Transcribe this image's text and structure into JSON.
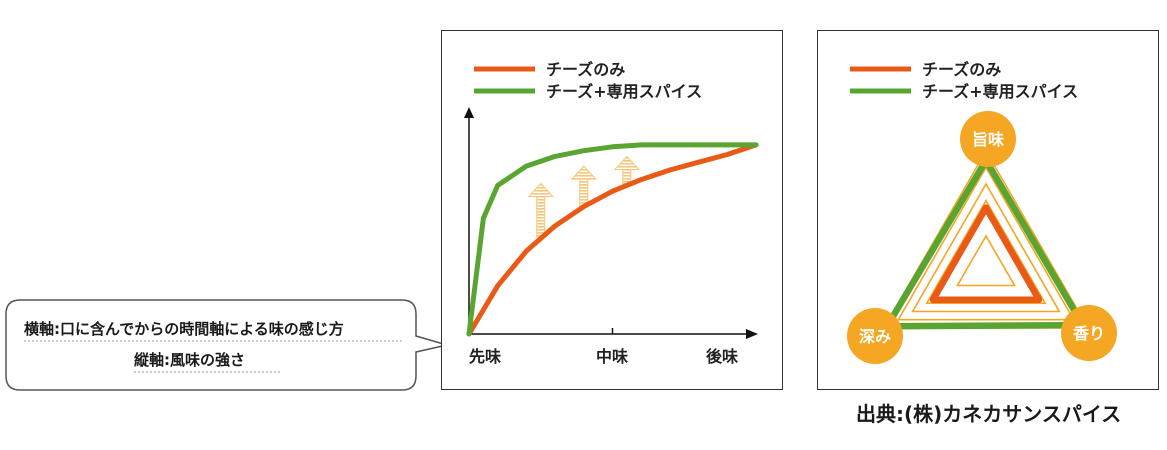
{
  "colors": {
    "cheese_only": "#e85a16",
    "cheese_spice": "#5aa532",
    "accent": "#f5a623",
    "arrow": "#f5c57a"
  },
  "callout": {
    "line1": "横軸:口に含んでからの時間軸による味の感じ方",
    "line2": "縦軸:風味の強さ"
  },
  "source": "出典:(株)カネカサンスパイス",
  "chart_data": [
    {
      "type": "line",
      "legend_position": "top-left",
      "categories": [
        "先味",
        "中味",
        "後味"
      ],
      "xlim": [
        0,
        1
      ],
      "ylim": [
        0,
        1
      ],
      "series": [
        {
          "name": "チーズのみ",
          "x": [
            0,
            0.1,
            0.2,
            0.3,
            0.4,
            0.5,
            0.6,
            0.7,
            0.8,
            0.9,
            1.0
          ],
          "y": [
            0,
            0.25,
            0.43,
            0.56,
            0.66,
            0.74,
            0.8,
            0.85,
            0.89,
            0.93,
            0.98
          ]
        },
        {
          "name": "チーズ+専用スパイス",
          "x": [
            0,
            0.05,
            0.1,
            0.2,
            0.3,
            0.4,
            0.5,
            0.6,
            0.7,
            0.8,
            0.9,
            1.0
          ],
          "y": [
            0,
            0.6,
            0.77,
            0.87,
            0.92,
            0.95,
            0.97,
            0.98,
            0.98,
            0.98,
            0.98,
            0.98
          ]
        }
      ],
      "arrows": [
        {
          "x": 0.25,
          "from": 0.5,
          "to": 0.78
        },
        {
          "x": 0.4,
          "from": 0.66,
          "to": 0.87
        },
        {
          "x": 0.55,
          "from": 0.78,
          "to": 0.92
        }
      ]
    },
    {
      "type": "radar",
      "legend_position": "top-left",
      "axes": [
        "旨味",
        "香り",
        "深み"
      ],
      "series": [
        {
          "name": "チーズのみ",
          "values": [
            0.52,
            0.52,
            0.52
          ]
        },
        {
          "name": "チーズ+専用スパイス",
          "values": [
            0.92,
            0.95,
            0.97
          ]
        }
      ]
    }
  ]
}
